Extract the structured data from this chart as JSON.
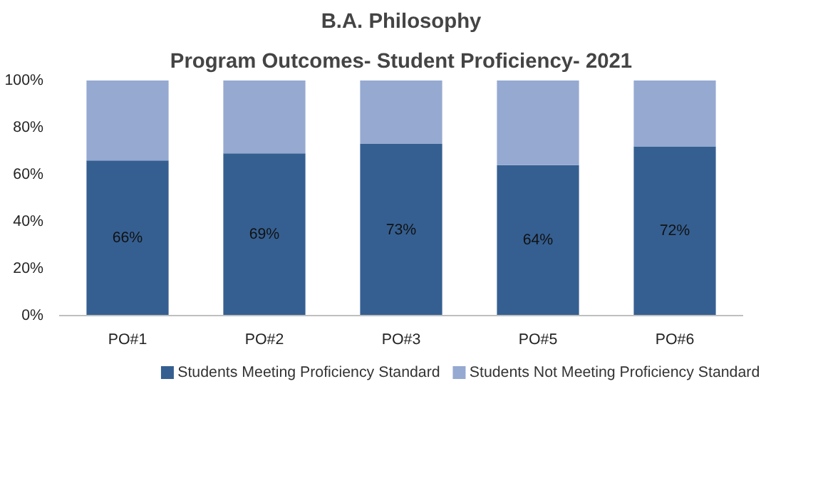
{
  "chart_data": {
    "type": "bar",
    "title": "B.A. Philosophy",
    "subtitle": "Program Outcomes- Student Proficiency- 2021",
    "stacked": true,
    "categories": [
      "PO#1",
      "PO#2",
      "PO#3",
      "PO#5",
      "PO#6"
    ],
    "series": [
      {
        "name": "Students Meeting Proficiency Standard",
        "color": "#355f91",
        "values": [
          66,
          69,
          73,
          64,
          72
        ],
        "value_labels": [
          "66%",
          "69%",
          "73%",
          "64%",
          "72%"
        ]
      },
      {
        "name": "Students Not Meeting Proficiency Standard",
        "color": "#95a9d1",
        "values": [
          34,
          31,
          27,
          36,
          28
        ]
      }
    ],
    "ylim": [
      0,
      100
    ],
    "yticks": [
      {
        "value": 0,
        "label": "0%"
      },
      {
        "value": 20,
        "label": "20%"
      },
      {
        "value": 40,
        "label": "40%"
      },
      {
        "value": 60,
        "label": "60%"
      },
      {
        "value": 80,
        "label": "80%"
      },
      {
        "value": 100,
        "label": "100%"
      }
    ],
    "grid": false,
    "legend": "bottom"
  }
}
